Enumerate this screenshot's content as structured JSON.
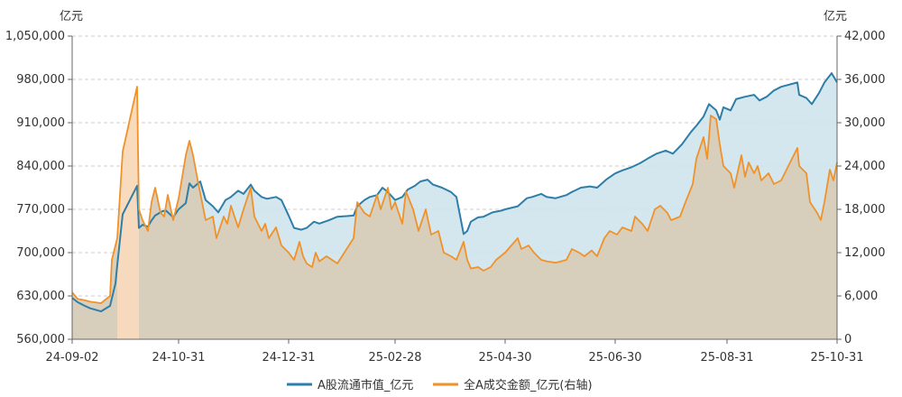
{
  "chart_data": {
    "type": "area",
    "title": "",
    "left_unit": "亿元",
    "right_unit": "亿元",
    "left_axis": {
      "min": 560000,
      "max": 1050000,
      "ticks": [
        560000,
        630000,
        700000,
        770000,
        840000,
        910000,
        980000,
        1050000
      ],
      "tick_labels": [
        "560,000",
        "630,000",
        "700,000",
        "770,000",
        "840,000",
        "910,000",
        "980,000",
        "1,050,000"
      ]
    },
    "right_axis": {
      "min": 0,
      "max": 42000,
      "ticks": [
        0,
        6000,
        12000,
        18000,
        24000,
        30000,
        36000,
        42000
      ],
      "tick_labels": [
        "0",
        "6,000",
        "12,000",
        "18,000",
        "24,000",
        "30,000",
        "36,000",
        "42,000"
      ]
    },
    "x_axis": {
      "start": "2024-09-02",
      "end": "2025-10-31",
      "tick_dates": [
        "2024-09-02",
        "2024-10-31",
        "2024-12-31",
        "2025-02-28",
        "2025-04-30",
        "2025-06-30",
        "2025-08-31",
        "2025-10-31"
      ],
      "tick_labels": [
        "24-09-02",
        "24-10-31",
        "24-12-31",
        "25-02-28",
        "25-04-30",
        "25-06-30",
        "25-08-31",
        "25-10-31"
      ]
    },
    "grid": "horizontal-dashed",
    "legend_position": "bottom",
    "series": [
      {
        "name": "A股流通市值_亿元",
        "axis": "left",
        "color": "#2e7ea8",
        "fill": "#cde3ec",
        "points": [
          [
            "2024-09-02",
            627000
          ],
          [
            "2024-09-05",
            620000
          ],
          [
            "2024-09-09",
            614000
          ],
          [
            "2024-09-12",
            610000
          ],
          [
            "2024-09-18",
            605000
          ],
          [
            "2024-09-23",
            614000
          ],
          [
            "2024-09-26",
            650000
          ],
          [
            "2024-09-27",
            680000
          ],
          [
            "2024-09-30",
            762000
          ],
          [
            "2024-10-08",
            808000
          ],
          [
            "2024-10-09",
            740000
          ],
          [
            "2024-10-11",
            745000
          ],
          [
            "2024-10-14",
            742000
          ],
          [
            "2024-10-16",
            752000
          ],
          [
            "2024-10-18",
            760000
          ],
          [
            "2024-10-22",
            767000
          ],
          [
            "2024-10-24",
            768000
          ],
          [
            "2024-10-28",
            757000
          ],
          [
            "2024-10-31",
            770000
          ],
          [
            "2024-11-04",
            780000
          ],
          [
            "2024-11-06",
            812000
          ],
          [
            "2024-11-08",
            805000
          ],
          [
            "2024-11-12",
            815000
          ],
          [
            "2024-11-15",
            785000
          ],
          [
            "2024-11-19",
            775000
          ],
          [
            "2024-11-22",
            765000
          ],
          [
            "2024-11-26",
            785000
          ],
          [
            "2024-11-29",
            790000
          ],
          [
            "2024-12-03",
            800000
          ],
          [
            "2024-12-06",
            795000
          ],
          [
            "2024-12-10",
            810000
          ],
          [
            "2024-12-12",
            800000
          ],
          [
            "2024-12-16",
            790000
          ],
          [
            "2024-12-19",
            787000
          ],
          [
            "2024-12-24",
            790000
          ],
          [
            "2024-12-27",
            785000
          ],
          [
            "2024-12-31",
            760000
          ],
          [
            "2025-01-03",
            740000
          ],
          [
            "2025-01-07",
            737000
          ],
          [
            "2025-01-10",
            740000
          ],
          [
            "2025-01-14",
            750000
          ],
          [
            "2025-01-17",
            747000
          ],
          [
            "2025-01-22",
            752000
          ],
          [
            "2025-01-27",
            758000
          ],
          [
            "2025-02-05",
            760000
          ],
          [
            "2025-02-07",
            775000
          ],
          [
            "2025-02-11",
            785000
          ],
          [
            "2025-02-14",
            790000
          ],
          [
            "2025-02-18",
            793000
          ],
          [
            "2025-02-21",
            805000
          ],
          [
            "2025-02-24",
            798000
          ],
          [
            "2025-02-28",
            785000
          ],
          [
            "2025-03-04",
            790000
          ],
          [
            "2025-03-07",
            802000
          ],
          [
            "2025-03-11",
            808000
          ],
          [
            "2025-03-14",
            815000
          ],
          [
            "2025-03-18",
            818000
          ],
          [
            "2025-03-21",
            810000
          ],
          [
            "2025-03-26",
            805000
          ],
          [
            "2025-03-31",
            798000
          ],
          [
            "2025-04-03",
            790000
          ],
          [
            "2025-04-07",
            730000
          ],
          [
            "2025-04-09",
            735000
          ],
          [
            "2025-04-11",
            750000
          ],
          [
            "2025-04-15",
            757000
          ],
          [
            "2025-04-18",
            758000
          ],
          [
            "2025-04-23",
            765000
          ],
          [
            "2025-04-28",
            768000
          ],
          [
            "2025-04-30",
            770000
          ],
          [
            "2025-05-07",
            775000
          ],
          [
            "2025-05-12",
            788000
          ],
          [
            "2025-05-15",
            790000
          ],
          [
            "2025-05-20",
            795000
          ],
          [
            "2025-05-23",
            790000
          ],
          [
            "2025-05-28",
            788000
          ],
          [
            "2025-06-03",
            793000
          ],
          [
            "2025-06-06",
            798000
          ],
          [
            "2025-06-11",
            805000
          ],
          [
            "2025-06-16",
            807000
          ],
          [
            "2025-06-20",
            805000
          ],
          [
            "2025-06-25",
            818000
          ],
          [
            "2025-06-30",
            828000
          ],
          [
            "2025-07-04",
            833000
          ],
          [
            "2025-07-09",
            838000
          ],
          [
            "2025-07-14",
            845000
          ],
          [
            "2025-07-18",
            852000
          ],
          [
            "2025-07-23",
            860000
          ],
          [
            "2025-07-28",
            865000
          ],
          [
            "2025-08-01",
            860000
          ],
          [
            "2025-08-06",
            875000
          ],
          [
            "2025-08-11",
            895000
          ],
          [
            "2025-08-14",
            905000
          ],
          [
            "2025-08-18",
            920000
          ],
          [
            "2025-08-21",
            940000
          ],
          [
            "2025-08-25",
            930000
          ],
          [
            "2025-08-27",
            915000
          ],
          [
            "2025-08-29",
            935000
          ],
          [
            "2025-09-02",
            930000
          ],
          [
            "2025-09-05",
            948000
          ],
          [
            "2025-09-10",
            952000
          ],
          [
            "2025-09-15",
            955000
          ],
          [
            "2025-09-18",
            946000
          ],
          [
            "2025-09-22",
            952000
          ],
          [
            "2025-09-26",
            962000
          ],
          [
            "2025-09-30",
            968000
          ],
          [
            "2025-10-09",
            975000
          ],
          [
            "2025-10-10",
            955000
          ],
          [
            "2025-10-14",
            950000
          ],
          [
            "2025-10-17",
            940000
          ],
          [
            "2025-10-21",
            958000
          ],
          [
            "2025-10-24",
            975000
          ],
          [
            "2025-10-28",
            990000
          ],
          [
            "2025-10-31",
            975000
          ]
        ]
      },
      {
        "name": "全A成交金额_亿元(右轴)",
        "axis": "right",
        "color": "#f0922a",
        "fill": "#d8ccb8",
        "points": [
          [
            "2024-09-02",
            6500
          ],
          [
            "2024-09-05",
            5600
          ],
          [
            "2024-09-09",
            5400
          ],
          [
            "2024-09-12",
            5200
          ],
          [
            "2024-09-18",
            5000
          ],
          [
            "2024-09-23",
            6000
          ],
          [
            "2024-09-24",
            11000
          ],
          [
            "2024-09-27",
            14000
          ],
          [
            "2024-09-30",
            26000
          ],
          [
            "2024-10-08",
            35000
          ],
          [
            "2024-10-09",
            18000
          ],
          [
            "2024-10-11",
            16500
          ],
          [
            "2024-10-14",
            15000
          ],
          [
            "2024-10-16",
            19000
          ],
          [
            "2024-10-18",
            21000
          ],
          [
            "2024-10-21",
            17500
          ],
          [
            "2024-10-23",
            17000
          ],
          [
            "2024-10-25",
            20000
          ],
          [
            "2024-10-28",
            16500
          ],
          [
            "2024-10-31",
            19500
          ],
          [
            "2024-11-04",
            25500
          ],
          [
            "2024-11-06",
            27500
          ],
          [
            "2024-11-08",
            25500
          ],
          [
            "2024-11-11",
            21500
          ],
          [
            "2024-11-13",
            19000
          ],
          [
            "2024-11-15",
            16500
          ],
          [
            "2024-11-19",
            17000
          ],
          [
            "2024-11-21",
            14000
          ],
          [
            "2024-11-25",
            17000
          ],
          [
            "2024-11-27",
            16000
          ],
          [
            "2024-11-29",
            18500
          ],
          [
            "2024-12-03",
            15500
          ],
          [
            "2024-12-06",
            18000
          ],
          [
            "2024-12-10",
            21000
          ],
          [
            "2024-12-12",
            17000
          ],
          [
            "2024-12-16",
            15000
          ],
          [
            "2024-12-18",
            16000
          ],
          [
            "2024-12-20",
            14000
          ],
          [
            "2024-12-24",
            15500
          ],
          [
            "2024-12-27",
            13000
          ],
          [
            "2024-12-31",
            12000
          ],
          [
            "2025-01-03",
            11000
          ],
          [
            "2025-01-06",
            13500
          ],
          [
            "2025-01-08",
            11500
          ],
          [
            "2025-01-10",
            10500
          ],
          [
            "2025-01-13",
            10000
          ],
          [
            "2025-01-15",
            12000
          ],
          [
            "2025-01-17",
            10800
          ],
          [
            "2025-01-21",
            11500
          ],
          [
            "2025-01-24",
            11000
          ],
          [
            "2025-01-27",
            10500
          ],
          [
            "2025-02-05",
            14000
          ],
          [
            "2025-02-07",
            19000
          ],
          [
            "2025-02-11",
            17500
          ],
          [
            "2025-02-14",
            17000
          ],
          [
            "2025-02-18",
            20000
          ],
          [
            "2025-02-20",
            18000
          ],
          [
            "2025-02-24",
            21000
          ],
          [
            "2025-02-26",
            18000
          ],
          [
            "2025-02-28",
            19000
          ],
          [
            "2025-03-04",
            16000
          ],
          [
            "2025-03-06",
            20500
          ],
          [
            "2025-03-10",
            18000
          ],
          [
            "2025-03-13",
            15000
          ],
          [
            "2025-03-17",
            18000
          ],
          [
            "2025-03-20",
            14500
          ],
          [
            "2025-03-24",
            15000
          ],
          [
            "2025-03-27",
            12000
          ],
          [
            "2025-03-31",
            11500
          ],
          [
            "2025-04-03",
            11000
          ],
          [
            "2025-04-07",
            13500
          ],
          [
            "2025-04-09",
            11000
          ],
          [
            "2025-04-11",
            9800
          ],
          [
            "2025-04-15",
            10000
          ],
          [
            "2025-04-18",
            9500
          ],
          [
            "2025-04-22",
            10000
          ],
          [
            "2025-04-25",
            11000
          ],
          [
            "2025-04-30",
            12000
          ],
          [
            "2025-05-07",
            14000
          ],
          [
            "2025-05-09",
            12500
          ],
          [
            "2025-05-13",
            13000
          ],
          [
            "2025-05-16",
            12000
          ],
          [
            "2025-05-20",
            11000
          ],
          [
            "2025-05-23",
            10800
          ],
          [
            "2025-05-28",
            10600
          ],
          [
            "2025-06-03",
            11000
          ],
          [
            "2025-06-06",
            12500
          ],
          [
            "2025-06-10",
            12000
          ],
          [
            "2025-06-13",
            11500
          ],
          [
            "2025-06-17",
            12300
          ],
          [
            "2025-06-20",
            11500
          ],
          [
            "2025-06-24",
            14000
          ],
          [
            "2025-06-27",
            15000
          ],
          [
            "2025-07-01",
            14500
          ],
          [
            "2025-07-04",
            15500
          ],
          [
            "2025-07-09",
            15000
          ],
          [
            "2025-07-11",
            17000
          ],
          [
            "2025-07-15",
            16000
          ],
          [
            "2025-07-18",
            15000
          ],
          [
            "2025-07-22",
            18000
          ],
          [
            "2025-07-25",
            18500
          ],
          [
            "2025-07-29",
            17500
          ],
          [
            "2025-07-31",
            16500
          ],
          [
            "2025-08-05",
            17000
          ],
          [
            "2025-08-08",
            19000
          ],
          [
            "2025-08-12",
            21500
          ],
          [
            "2025-08-14",
            25000
          ],
          [
            "2025-08-18",
            28000
          ],
          [
            "2025-08-20",
            25000
          ],
          [
            "2025-08-22",
            31000
          ],
          [
            "2025-08-25",
            30500
          ],
          [
            "2025-08-27",
            27000
          ],
          [
            "2025-08-29",
            24000
          ],
          [
            "2025-09-02",
            23000
          ],
          [
            "2025-09-04",
            21000
          ],
          [
            "2025-09-08",
            25500
          ],
          [
            "2025-09-10",
            22500
          ],
          [
            "2025-09-12",
            24500
          ],
          [
            "2025-09-15",
            23000
          ],
          [
            "2025-09-17",
            24000
          ],
          [
            "2025-09-19",
            22000
          ],
          [
            "2025-09-23",
            23000
          ],
          [
            "2025-09-26",
            21500
          ],
          [
            "2025-09-30",
            22000
          ],
          [
            "2025-10-09",
            26500
          ],
          [
            "2025-10-10",
            24000
          ],
          [
            "2025-10-14",
            23000
          ],
          [
            "2025-10-16",
            19000
          ],
          [
            "2025-10-20",
            17500
          ],
          [
            "2025-10-22",
            16500
          ],
          [
            "2025-10-24",
            19000
          ],
          [
            "2025-10-27",
            23500
          ],
          [
            "2025-10-29",
            22000
          ],
          [
            "2025-10-31",
            24500
          ]
        ]
      }
    ]
  }
}
